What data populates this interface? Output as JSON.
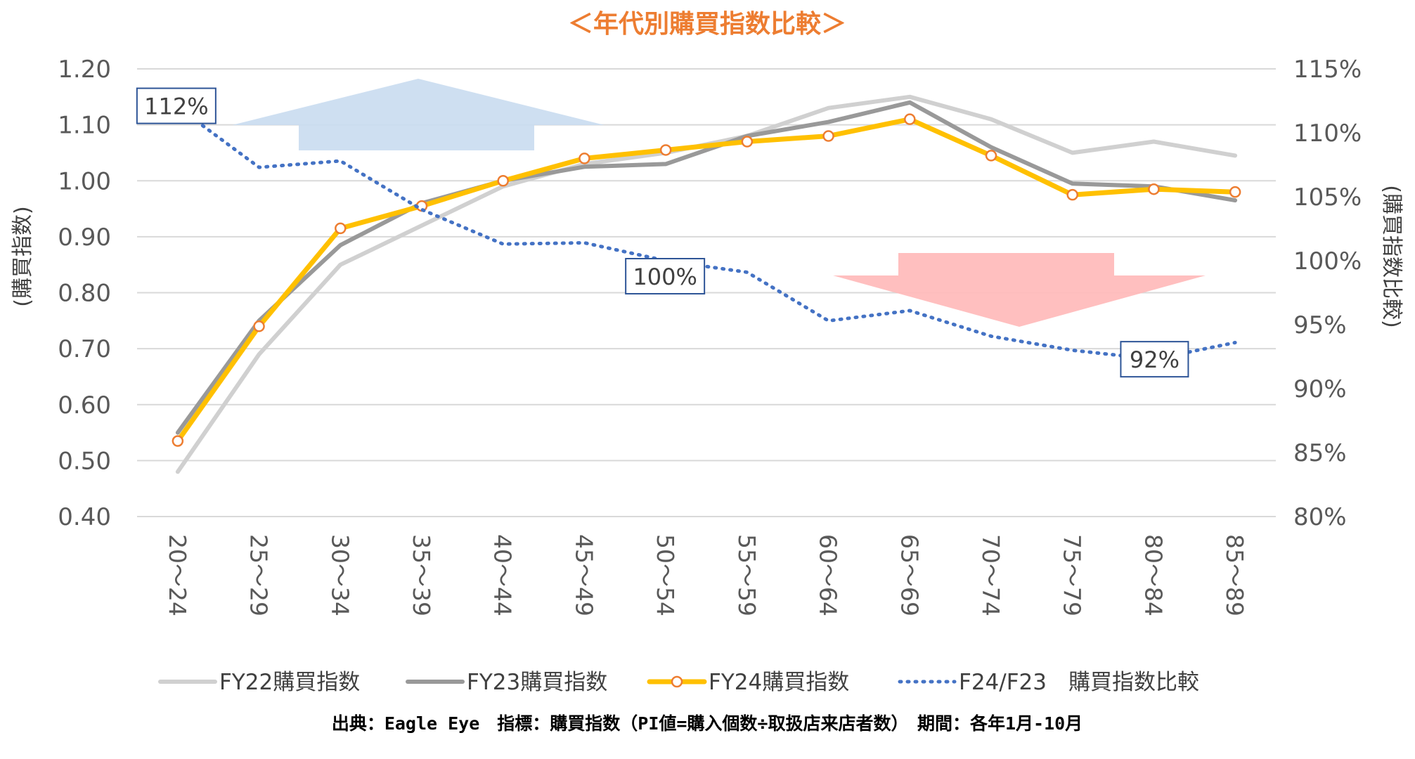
{
  "chart_data": {
    "type": "line",
    "title": "＜年代別購買指数比較＞",
    "ylabel_left": "(購買指数)",
    "ylabel_right": "(購買指数比較)",
    "y_left_ticks": [
      "1.20",
      "1.10",
      "1.00",
      "0.90",
      "0.80",
      "0.70",
      "0.60",
      "0.50",
      "0.40"
    ],
    "y_left_range": [
      0.4,
      1.2
    ],
    "y_right_ticks": [
      "115%",
      "110%",
      "105%",
      "100%",
      "95%",
      "90%",
      "85%",
      "80%"
    ],
    "y_right_range": [
      80,
      115
    ],
    "categories": [
      "20～24",
      "25～29",
      "30～34",
      "35～39",
      "40～44",
      "45～49",
      "50～54",
      "55～59",
      "60～64",
      "65～69",
      "70～74",
      "75～79",
      "80～84",
      "85～89"
    ],
    "series": [
      {
        "name": "FY22購買指数",
        "axis": "left",
        "color": "#D0D0D0",
        "values": [
          0.48,
          0.69,
          0.85,
          0.92,
          0.99,
          1.03,
          1.05,
          1.08,
          1.13,
          1.15,
          1.11,
          1.05,
          1.07,
          1.045
        ]
      },
      {
        "name": "FY23購買指数",
        "axis": "left",
        "color": "#999999",
        "values": [
          0.55,
          0.75,
          0.885,
          0.96,
          1.0,
          1.025,
          1.03,
          1.08,
          1.105,
          1.14,
          1.06,
          0.995,
          0.99,
          0.965
        ]
      },
      {
        "name": "FY24購買指数",
        "axis": "left",
        "color": "#FFC000",
        "values": [
          0.535,
          0.74,
          0.915,
          0.955,
          1.0,
          1.04,
          1.055,
          1.07,
          1.08,
          1.11,
          1.045,
          0.975,
          0.985,
          0.98
        ]
      },
      {
        "name": "F24/F23　購買指数比較",
        "axis": "right",
        "color": "#4472C4",
        "values": [
          112,
          107.3,
          107.8,
          104,
          101.3,
          101.4,
          100,
          99.1,
          95.3,
          96.1,
          94.1,
          93,
          92.3,
          93.6
        ]
      }
    ],
    "annotations": [
      {
        "text": "112%",
        "category": "20～24"
      },
      {
        "text": "100%",
        "category": "50～54"
      },
      {
        "text": "92%",
        "category": "80～84"
      }
    ],
    "arrows": [
      {
        "direction": "up",
        "color": "#C9DCF0"
      },
      {
        "direction": "down",
        "color": "#FFB8B8"
      }
    ]
  },
  "source_note": "出典：Eagle Eye　指標：購買指数（PI値=購入個数÷取扱店来店者数）　期間：各年1月-10月"
}
